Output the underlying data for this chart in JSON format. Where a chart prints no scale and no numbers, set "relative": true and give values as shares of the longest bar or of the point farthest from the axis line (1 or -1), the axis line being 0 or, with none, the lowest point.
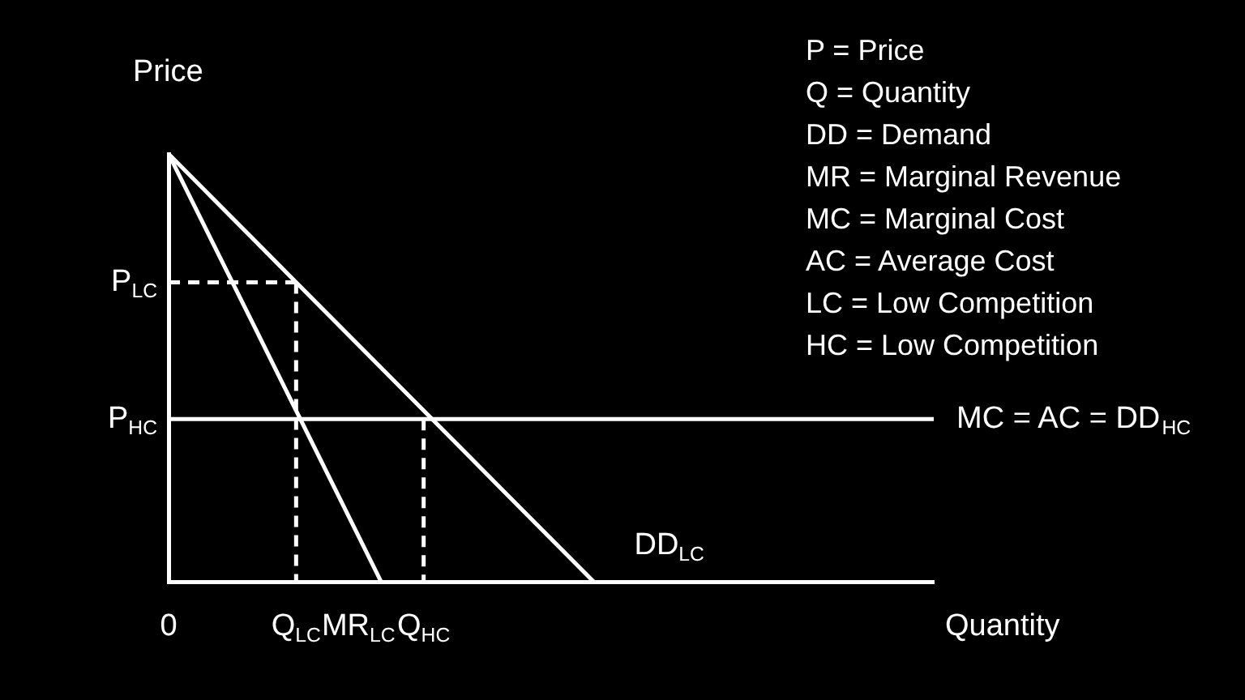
{
  "chart_data": {
    "type": "line",
    "relative": true,
    "xlabel": "Quantity",
    "ylabel": "Price",
    "marker": "none",
    "grid": false,
    "legend": false,
    "categories": [
      "0",
      null,
      null,
      "Q$_{LC}$",
      null,
      null,
      "Q$_{HC}$",
      null,
      null,
      null,
      null,
      null,
      null,
      null,
      null,
      null,
      null,
      null,
      null
    ],
    "series": [
      {
        "name": "DD$_{LC}$",
        "color": "#ffffff",
        "values": [
          1,
          0.9,
          0.8,
          0.7,
          0.6,
          0.5,
          0.4,
          0.3,
          0.2,
          0.1,
          0,
          null,
          null,
          null,
          null,
          null,
          null,
          null,
          null
        ]
      },
      {
        "name": "MR$_{LC}$",
        "color": "#ffffff",
        "values": [
          1,
          0.8,
          0.6,
          0.4,
          0.2,
          0,
          null,
          null,
          null,
          null,
          null,
          null,
          null,
          null,
          null,
          null,
          null,
          null,
          null
        ]
      },
      {
        "name": "MC = AC = DD$_{HC}$",
        "color": "#ffffff",
        "values": [
          0.38,
          0.38,
          0.38,
          0.38,
          0.38,
          0.38,
          0.38,
          0.38,
          0.38,
          0.38,
          0.38,
          0.38,
          0.38,
          0.38,
          0.38,
          0.38,
          0.38,
          0.38,
          0.38
        ]
      },
      {
        "color": "#ffffff",
        "line_style": "dashed",
        "values": [
          0.7,
          0.7,
          0.7,
          0.7,
          null,
          null,
          null,
          null,
          null,
          null,
          null,
          null,
          null,
          null,
          null,
          null,
          null,
          null,
          null
        ]
      },
      {
        "color": "#ffffff",
        "line_style": "dashed",
        "x": [
          "Q$_{LC}$",
          "Q$_{LC}$"
        ],
        "values": [
          0.7,
          0
        ]
      },
      {
        "color": "#ffffff",
        "line_style": "dashed",
        "x": [
          "Q$_{HC}$",
          "Q$_{HC}$"
        ],
        "values": [
          0.38,
          0
        ]
      }
    ],
    "annotations": [
      {
        "text": "P$_{LC}$",
        "x": "0",
        "y": 0.7
      },
      {
        "text": "P$_{HC}$",
        "x": "0",
        "y": 0.38
      },
      "P = Price",
      "Q = Quantity",
      "DD = Demand",
      "MR = Marginal Revenue",
      "MC = Marginal Cost",
      "AC = Average Cost",
      "LC = Low Competition",
      "HC = Low Competition"
    ]
  }
}
